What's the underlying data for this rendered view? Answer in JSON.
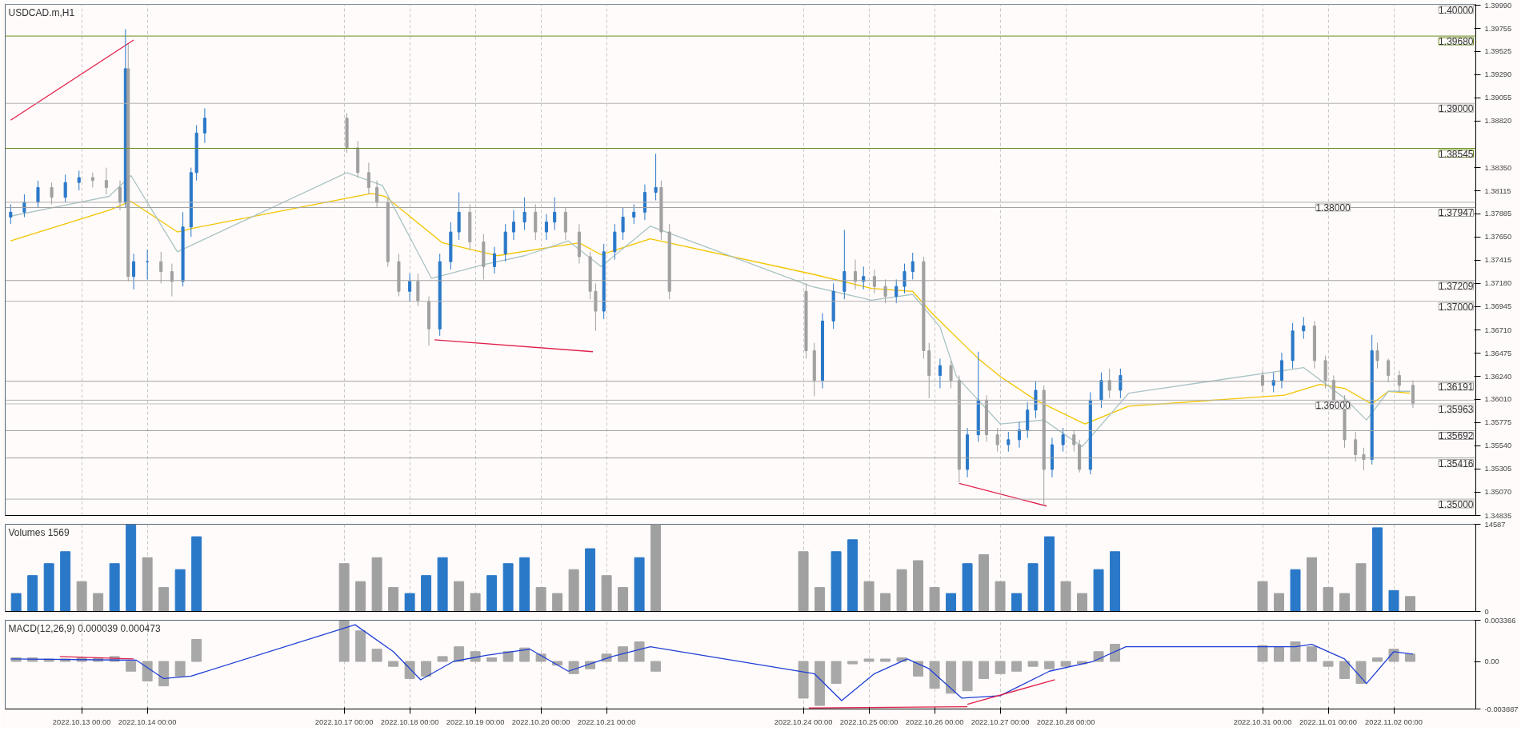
{
  "chart_data": [
    {
      "type": "candlestick",
      "title": "USDCAD.m,H1",
      "grid": "x",
      "tick_labels": "y",
      "xlim": [
        "2022-10-11T20:00",
        "2022-11-03T06:00"
      ],
      "ylim": [
        1.34835,
        1.4
      ],
      "xticks": [
        {
          "value": "2022-10-13T00:00",
          "label": null
        },
        {
          "value": "2022-10-14T00:00",
          "label": null
        },
        {
          "value": "2022-10-17T00:00",
          "label": null
        },
        {
          "value": "2022-10-18T00:00",
          "label": null
        },
        {
          "value": "2022-10-19T00:00",
          "label": null
        },
        {
          "value": "2022-10-20T00:00",
          "label": null
        },
        {
          "value": "2022-10-21T00:00",
          "label": null
        },
        {
          "value": "2022-10-24T00:00",
          "label": null
        },
        {
          "value": "2022-10-25T00:00",
          "label": null
        },
        {
          "value": "2022-10-26T00:00",
          "label": null
        },
        {
          "value": "2022-10-27T00:00",
          "label": null
        },
        {
          "value": "2022-10-28T00:00",
          "label": null
        },
        {
          "value": "2022-10-31T00:00",
          "label": null
        },
        {
          "value": "2022-11-01T00:00",
          "label": null
        },
        {
          "value": "2022-11-02T00:00",
          "label": null
        }
      ],
      "yticks": [
        {
          "value": 1.3999,
          "label": "1.39990"
        },
        1.39755,
        1.39525,
        {
          "value": 1.3929,
          "label": "1.39290"
        },
        1.39055,
        {
          "value": 1.3882,
          "label": "1.38820"
        },
        {
          "value": 1.3835,
          "label": "1.38350"
        },
        1.38115,
        1.37885,
        {
          "value": 1.3765,
          "label": "1.37650"
        },
        1.37415,
        {
          "value": 1.3718,
          "label": "1.37180"
        },
        1.36945,
        {
          "value": 1.3671,
          "label": "1.36710"
        },
        1.36475,
        {
          "value": 1.3624,
          "label": "1.36240"
        },
        {
          "value": 1.3601,
          "label": "1.36010"
        },
        1.35775,
        {
          "value": 1.3554,
          "label": "1.35540"
        },
        1.35305,
        {
          "value": 1.3507,
          "label": "1.35070"
        },
        1.34835
      ],
      "x": [
        "2022-10-11T22:00",
        "2022-10-12T03:00",
        "2022-10-12T08:00",
        "2022-10-12T13:00",
        "2022-10-12T18:00",
        "2022-10-12T23:00",
        "2022-10-13T04:00",
        "2022-10-13T09:00",
        "2022-10-13T14:00",
        "2022-10-13T16:00",
        "2022-10-13T17:00",
        "2022-10-13T19:00",
        "2022-10-14T00:00",
        "2022-10-14T05:00",
        "2022-10-14T09:00",
        "2022-10-14T13:00",
        "2022-10-14T16:00",
        "2022-10-14T18:00",
        "2022-10-14T21:00",
        "2022-10-17T01:00",
        "2022-10-17T05:00",
        "2022-10-17T09:00",
        "2022-10-17T12:00",
        "2022-10-17T16:00",
        "2022-10-17T20:00",
        "2022-10-18T00:00",
        "2022-10-18T03:00",
        "2022-10-18T07:00",
        "2022-10-18T11:00",
        "2022-10-18T15:00",
        "2022-10-18T18:00",
        "2022-10-18T22:00",
        "2022-10-19T03:00",
        "2022-10-19T07:00",
        "2022-10-19T11:00",
        "2022-10-19T14:00",
        "2022-10-19T18:00",
        "2022-10-19T22:00",
        "2022-10-20T02:00",
        "2022-10-20T05:00",
        "2022-10-20T09:00",
        "2022-10-20T14:00",
        "2022-10-20T18:00",
        "2022-10-20T20:00",
        "2022-10-20T23:00",
        "2022-10-21T03:00",
        "2022-10-21T06:00",
        "2022-10-21T10:00",
        "2022-10-21T14:00",
        "2022-10-21T18:00",
        "2022-10-21T20:00",
        "2022-10-21T23:00",
        "2022-10-24T01:00",
        "2022-10-24T04:00",
        "2022-10-24T07:00",
        "2022-10-24T11:00",
        "2022-10-24T15:00",
        "2022-10-24T19:00",
        "2022-10-24T22:00",
        "2022-10-25T02:00",
        "2022-10-25T06:00",
        "2022-10-25T10:00",
        "2022-10-25T13:00",
        "2022-10-25T16:00",
        "2022-10-25T20:00",
        "2022-10-25T22:00",
        "2022-10-26T02:00",
        "2022-10-26T06:00",
        "2022-10-26T09:00",
        "2022-10-26T12:00",
        "2022-10-26T16:00",
        "2022-10-26T19:00",
        "2022-10-26T23:00",
        "2022-10-27T03:00",
        "2022-10-27T07:00",
        "2022-10-27T10:00",
        "2022-10-27T13:00",
        "2022-10-27T16:00",
        "2022-10-27T19:00",
        "2022-10-27T23:00",
        "2022-10-28T03:00",
        "2022-10-28T05:00",
        "2022-10-28T09:00",
        "2022-10-28T13:00",
        "2022-10-28T16:00",
        "2022-10-28T20:00",
        "2022-10-31T00:00",
        "2022-10-31T04:00",
        "2022-10-31T07:00",
        "2022-10-31T11:00",
        "2022-10-31T15:00",
        "2022-10-31T19:00",
        "2022-10-31T23:00",
        "2022-11-01T02:00",
        "2022-11-01T06:00",
        "2022-11-01T10:00",
        "2022-11-01T13:00",
        "2022-11-01T16:00",
        "2022-11-01T18:00",
        "2022-11-01T22:00",
        "2022-11-02T02:00",
        "2022-11-02T07:00"
      ],
      "ohlc": [
        [
          1.3785,
          1.3798,
          1.3778,
          1.379
        ],
        [
          1.379,
          1.3808,
          1.3785,
          1.38
        ],
        [
          1.38,
          1.3822,
          1.3795,
          1.3815
        ],
        [
          1.3815,
          1.382,
          1.3798,
          1.3805
        ],
        [
          1.3805,
          1.3828,
          1.38,
          1.382
        ],
        [
          1.382,
          1.3832,
          1.3812,
          1.3825
        ],
        [
          1.3825,
          1.383,
          1.3815,
          1.3822
        ],
        [
          1.3822,
          1.3835,
          1.3808,
          1.3815
        ],
        [
          1.3815,
          1.3822,
          1.3792,
          1.38
        ],
        [
          1.38,
          1.3975,
          1.3795,
          1.3935
        ],
        [
          1.3935,
          1.396,
          1.372,
          1.3725
        ],
        [
          1.3725,
          1.3748,
          1.3712,
          1.374
        ],
        [
          1.374,
          1.3752,
          1.3722,
          1.374
        ],
        [
          1.374,
          1.375,
          1.3718,
          1.373
        ],
        [
          1.373,
          1.3738,
          1.3705,
          1.372
        ],
        [
          1.372,
          1.379,
          1.3715,
          1.3775
        ],
        [
          1.3775,
          1.3835,
          1.3765,
          1.383
        ],
        [
          1.383,
          1.3878,
          1.3822,
          1.387
        ],
        [
          1.387,
          1.3895,
          1.386,
          1.3885
        ],
        [
          1.3885,
          1.389,
          1.385,
          1.3855
        ],
        [
          1.3855,
          1.3862,
          1.3825,
          1.383
        ],
        [
          1.383,
          1.384,
          1.3808,
          1.3815
        ],
        [
          1.3815,
          1.3822,
          1.3795,
          1.38
        ],
        [
          1.38,
          1.3805,
          1.3735,
          1.374
        ],
        [
          1.374,
          1.3748,
          1.3705,
          1.371
        ],
        [
          1.371,
          1.3728,
          1.37,
          1.372
        ],
        [
          1.372,
          1.3728,
          1.3695,
          1.37
        ],
        [
          1.37,
          1.3705,
          1.3655,
          1.3672
        ],
        [
          1.3672,
          1.3748,
          1.3665,
          1.374
        ],
        [
          1.374,
          1.378,
          1.3732,
          1.377
        ],
        [
          1.377,
          1.381,
          1.3762,
          1.379
        ],
        [
          1.379,
          1.3798,
          1.3752,
          1.376
        ],
        [
          1.376,
          1.3768,
          1.3722,
          1.3735
        ],
        [
          1.3735,
          1.3755,
          1.3728,
          1.3748
        ],
        [
          1.3748,
          1.3778,
          1.374,
          1.377
        ],
        [
          1.377,
          1.3792,
          1.3762,
          1.378
        ],
        [
          1.378,
          1.3805,
          1.3772,
          1.379
        ],
        [
          1.379,
          1.3798,
          1.3762,
          1.377
        ],
        [
          1.377,
          1.3788,
          1.3762,
          1.378
        ],
        [
          1.378,
          1.3805,
          1.3772,
          1.379
        ],
        [
          1.379,
          1.3795,
          1.3762,
          1.377
        ],
        [
          1.377,
          1.3778,
          1.3738,
          1.3745
        ],
        [
          1.3745,
          1.375,
          1.3702,
          1.371
        ],
        [
          1.371,
          1.3718,
          1.367,
          1.369
        ],
        [
          1.369,
          1.3758,
          1.3682,
          1.375
        ],
        [
          1.375,
          1.3778,
          1.3742,
          1.377
        ],
        [
          1.377,
          1.3795,
          1.3762,
          1.3785
        ],
        [
          1.3785,
          1.3798,
          1.3778,
          1.379
        ],
        [
          1.379,
          1.3818,
          1.3782,
          1.381
        ],
        [
          1.381,
          1.3849,
          1.3802,
          1.3815
        ],
        [
          1.3815,
          1.3822,
          1.3762,
          1.377
        ],
        [
          1.377,
          1.3778,
          1.3702,
          1.371
        ],
        [
          1.371,
          1.3718,
          1.3642,
          1.365
        ],
        [
          1.365,
          1.3658,
          1.3604,
          1.362
        ],
        [
          1.362,
          1.3688,
          1.3612,
          1.368
        ],
        [
          1.368,
          1.3718,
          1.3672,
          1.371
        ],
        [
          1.371,
          1.3772,
          1.3702,
          1.373
        ],
        [
          1.373,
          1.3742,
          1.3712,
          1.372
        ],
        [
          1.372,
          1.3735,
          1.3712,
          1.3725
        ],
        [
          1.3725,
          1.3732,
          1.3708,
          1.3715
        ],
        [
          1.3715,
          1.3722,
          1.3698,
          1.3705
        ],
        [
          1.3705,
          1.3722,
          1.3698,
          1.3715
        ],
        [
          1.3715,
          1.3738,
          1.3708,
          1.373
        ],
        [
          1.373,
          1.3749,
          1.3722,
          1.374
        ],
        [
          1.374,
          1.3745,
          1.3642,
          1.365
        ],
        [
          1.365,
          1.3658,
          1.3602,
          1.3625
        ],
        [
          1.3625,
          1.3642,
          1.3612,
          1.3635
        ],
        [
          1.3635,
          1.364,
          1.3612,
          1.362
        ],
        [
          1.362,
          1.3625,
          1.3517,
          1.353
        ],
        [
          1.353,
          1.3572,
          1.3522,
          1.3565
        ],
        [
          1.3565,
          1.3649,
          1.3558,
          1.36
        ],
        [
          1.36,
          1.3605,
          1.3558,
          1.3565
        ],
        [
          1.3565,
          1.3572,
          1.3548,
          1.3555
        ],
        [
          1.3555,
          1.3568,
          1.3548,
          1.356
        ],
        [
          1.356,
          1.3578,
          1.3552,
          1.357
        ],
        [
          1.357,
          1.3598,
          1.3562,
          1.359
        ],
        [
          1.359,
          1.3619,
          1.3582,
          1.361
        ],
        [
          1.361,
          1.3615,
          1.3493,
          1.353
        ],
        [
          1.353,
          1.3562,
          1.3522,
          1.3555
        ],
        [
          1.3555,
          1.3572,
          1.3548,
          1.3565
        ],
        [
          1.3565,
          1.357,
          1.3548,
          1.3555
        ],
        [
          1.3555,
          1.356,
          1.3527,
          1.353
        ],
        [
          1.353,
          1.3608,
          1.3525,
          1.36
        ],
        [
          1.36,
          1.3628,
          1.3592,
          1.362
        ],
        [
          1.362,
          1.3632,
          1.3602,
          1.361
        ],
        [
          1.361,
          1.3632,
          1.3602,
          1.3625
        ],
        [
          1.3625,
          1.363,
          1.3608,
          1.3615
        ],
        [
          1.3615,
          1.3628,
          1.3608,
          1.362
        ],
        [
          1.362,
          1.3648,
          1.3612,
          1.364
        ],
        [
          1.364,
          1.3678,
          1.3632,
          1.367
        ],
        [
          1.367,
          1.3684,
          1.3662,
          1.3675
        ],
        [
          1.3675,
          1.368,
          1.3632,
          1.364
        ],
        [
          1.364,
          1.3645,
          1.3612,
          1.362
        ],
        [
          1.362,
          1.3625,
          1.3592,
          1.36
        ],
        [
          1.36,
          1.3605,
          1.3552,
          1.356
        ],
        [
          1.356,
          1.3568,
          1.3538,
          1.3545
        ],
        [
          1.3545,
          1.3552,
          1.3529,
          1.354
        ],
        [
          1.354,
          1.3666,
          1.3535,
          1.365
        ],
        [
          1.365,
          1.3658,
          1.3632,
          1.364
        ],
        [
          1.364,
          1.3642,
          1.3618,
          1.3625
        ],
        [
          1.3625,
          1.363,
          1.3608,
          1.3615
        ],
        [
          1.3615,
          1.362,
          1.3592,
          1.35963
        ]
      ],
      "series": [
        {
          "type": "line",
          "color": "#f2c500",
          "x": [
            "2022-10-11T22:00",
            "2022-10-13T10:00",
            "2022-10-13T18:00",
            "2022-10-14T11:00",
            "2022-10-14T17:00",
            "2022-10-17T10:00",
            "2022-10-17T15:00",
            "2022-10-18T12:00",
            "2022-10-19T08:00",
            "2022-10-20T02:00",
            "2022-10-20T14:00",
            "2022-10-20T22:00",
            "2022-10-21T16:00",
            "2022-10-24T04:00",
            "2022-10-25T01:00",
            "2022-10-25T16:00",
            "2022-10-25T23:00",
            "2022-10-26T16:00",
            "2022-10-27T00:00",
            "2022-10-27T13:00",
            "2022-10-28T07:00",
            "2022-10-28T23:00",
            "2022-10-31T08:00",
            "2022-10-31T21:00",
            "2022-11-01T06:00",
            "2022-11-01T16:00",
            "2022-11-01T22:00",
            "2022-11-02T06:00"
          ],
          "values": [
            1.3761,
            1.3792,
            1.3801,
            1.377,
            1.3774,
            1.3809,
            1.3806,
            1.3759,
            1.3746,
            1.3754,
            1.3759,
            1.3747,
            1.3763,
            1.3727,
            1.3713,
            1.371,
            1.3688,
            1.3642,
            1.3624,
            1.36,
            1.3576,
            1.3594,
            1.3605,
            1.3616,
            1.3612,
            1.3596,
            1.3609,
            1.3607
          ]
        },
        {
          "type": "line",
          "color": "#a9c4c4",
          "x": [
            "2022-10-11T22:00",
            "2022-10-13T10:00",
            "2022-10-13T18:00",
            "2022-10-14T11:00",
            "2022-10-17T01:00",
            "2022-10-17T14:00",
            "2022-10-18T08:00",
            "2022-10-19T03:00",
            "2022-10-19T18:00",
            "2022-10-20T10:00",
            "2022-10-20T22:00",
            "2022-10-21T16:00",
            "2022-10-24T03:00",
            "2022-10-25T01:00",
            "2022-10-25T16:00",
            "2022-10-26T02:00",
            "2022-10-26T08:00",
            "2022-10-27T00:00",
            "2022-10-27T16:00",
            "2022-10-28T06:00",
            "2022-10-28T23:00",
            "2022-10-31T15:00",
            "2022-11-01T06:00",
            "2022-11-01T14:00",
            "2022-11-01T22:00",
            "2022-11-02T06:00"
          ],
          "values": [
            1.3786,
            1.3806,
            1.3827,
            1.375,
            1.383,
            1.3817,
            1.3723,
            1.3737,
            1.3746,
            1.3761,
            1.3735,
            1.3776,
            1.3715,
            1.3701,
            1.3707,
            1.3674,
            1.3624,
            1.3576,
            1.358,
            1.3553,
            1.3607,
            1.3633,
            1.3602,
            1.358,
            1.3609,
            1.3609
          ]
        },
        {
          "type": "line",
          "color": "#e0204a",
          "x": [
            "2022-10-11T22:00",
            "2022-10-13T19:00"
          ],
          "values": [
            1.3883,
            1.3964
          ]
        },
        {
          "type": "line",
          "color": "#e0204a",
          "x": [
            "2022-10-18T09:00",
            "2022-10-20T19:00"
          ],
          "values": [
            1.3661,
            1.3649
          ]
        },
        {
          "type": "line",
          "color": "#e0204a",
          "x": [
            "2022-10-26T09:00",
            "2022-10-27T17:00"
          ],
          "values": [
            1.3516,
            1.3493
          ]
        }
      ],
      "colors": [
        "#2a78c8",
        "#2a78c8",
        "#2a78c8",
        "#a0a0a0",
        "#2a78c8",
        "#2a78c8",
        "#a0a0a0",
        "#a0a0a0",
        "#a0a0a0",
        "#2a78c8",
        "#a0a0a0",
        "#2a78c8",
        "#2a78c8",
        "#a0a0a0",
        "#a0a0a0",
        "#2a78c8",
        "#2a78c8",
        "#2a78c8",
        "#2a78c8",
        "#a0a0a0",
        "#a0a0a0",
        "#a0a0a0",
        "#a0a0a0",
        "#a0a0a0",
        "#a0a0a0",
        "#2a78c8",
        "#a0a0a0",
        "#a0a0a0",
        "#2a78c8",
        "#2a78c8",
        "#2a78c8",
        "#a0a0a0",
        "#a0a0a0",
        "#2a78c8",
        "#2a78c8",
        "#2a78c8",
        "#2a78c8",
        "#a0a0a0",
        "#2a78c8",
        "#2a78c8",
        "#a0a0a0",
        "#a0a0a0",
        "#a0a0a0",
        "#a0a0a0",
        "#2a78c8",
        "#2a78c8",
        "#2a78c8",
        "#2a78c8",
        "#2a78c8",
        "#2a78c8",
        "#a0a0a0",
        "#a0a0a0",
        "#a0a0a0",
        "#a0a0a0",
        "#2a78c8",
        "#2a78c8",
        "#2a78c8",
        "#a0a0a0",
        "#2a78c8",
        "#a0a0a0",
        "#a0a0a0",
        "#2a78c8",
        "#2a78c8",
        "#2a78c8",
        "#a0a0a0",
        "#a0a0a0",
        "#2a78c8",
        "#a0a0a0",
        "#a0a0a0",
        "#2a78c8",
        "#2a78c8",
        "#a0a0a0",
        "#a0a0a0",
        "#2a78c8",
        "#2a78c8",
        "#2a78c8",
        "#2a78c8",
        "#a0a0a0",
        "#2a78c8",
        "#2a78c8",
        "#a0a0a0",
        "#a0a0a0",
        "#2a78c8",
        "#2a78c8",
        "#a0a0a0",
        "#2a78c8",
        "#a0a0a0",
        "#2a78c8",
        "#2a78c8",
        "#2a78c8",
        "#2a78c8",
        "#a0a0a0",
        "#a0a0a0",
        "#a0a0a0",
        "#a0a0a0",
        "#a0a0a0",
        "#a0a0a0",
        "#2a78c8",
        "#a0a0a0",
        "#a0a0a0",
        "#a0a0a0",
        "#a0a0a0"
      ],
      "ref_lines": [
        {
          "axis": "y",
          "value": 1.3968,
          "label": "1.39680",
          "color": "#6b8e23"
        },
        {
          "axis": "y",
          "value": 1.38545,
          "label": "1.38545",
          "color": "#6b8e23"
        },
        {
          "axis": "y",
          "value": 1.37947,
          "label": "1.37947",
          "color": "#a0a0a0"
        },
        {
          "axis": "y",
          "value": 1.37209,
          "label": "1.37209",
          "color": "#a0a0a0"
        },
        {
          "axis": "y",
          "value": 1.36191,
          "label": "1.36191",
          "color": "#a0a0a0"
        },
        {
          "axis": "y",
          "value": 1.35692,
          "label": "1.35692",
          "color": "#a0a0a0"
        },
        {
          "axis": "y",
          "value": 1.35416,
          "label": "1.35416",
          "color": "#a0a0a0"
        },
        {
          "axis": "y",
          "value": 1.35963,
          "label": "1.35963",
          "color": "#c0c0c0"
        },
        {
          "axis": "y",
          "value": 1.4,
          "label": "1.40000",
          "color": "#b0b0b0"
        },
        {
          "axis": "y",
          "value": 1.39,
          "label": "1.39000",
          "color": "#b0b0b0"
        },
        {
          "axis": "y",
          "value": 1.38,
          "label": "1.38000",
          "color": "#b0b0b0"
        },
        {
          "axis": "y",
          "value": 1.37,
          "label": "1.37000",
          "color": "#b0b0b0"
        },
        {
          "axis": "y",
          "value": 1.36,
          "label": "1.36000",
          "color": "#b0b0b0"
        },
        {
          "axis": "y",
          "value": 1.35,
          "label": "1.35000",
          "color": "#b0b0b0"
        }
      ]
    },
    {
      "type": "bar",
      "title": "Volumes 1569",
      "grid": "x",
      "tick_labels": "y",
      "xlim": [
        "2022-10-11T20:00",
        "2022-11-03T06:00"
      ],
      "ylim": [
        0,
        14587
      ],
      "yticks": [
        0,
        14587
      ],
      "xticks": [
        {
          "value": "2022-10-13T00:00",
          "label": null
        },
        {
          "value": "2022-10-14T00:00",
          "label": null
        },
        {
          "value": "2022-10-17T00:00",
          "label": null
        },
        {
          "value": "2022-10-18T00:00",
          "label": null
        },
        {
          "value": "2022-10-19T00:00",
          "label": null
        },
        {
          "value": "2022-10-20T00:00",
          "label": null
        },
        {
          "value": "2022-10-21T00:00",
          "label": null
        },
        {
          "value": "2022-10-24T00:00",
          "label": null
        },
        {
          "value": "2022-10-25T00:00",
          "label": null
        },
        {
          "value": "2022-10-26T00:00",
          "label": null
        },
        {
          "value": "2022-10-27T00:00",
          "label": null
        },
        {
          "value": "2022-10-28T00:00",
          "label": null
        },
        {
          "value": "2022-10-31T00:00",
          "label": null
        },
        {
          "value": "2022-11-01T00:00",
          "label": null
        },
        {
          "value": "2022-11-02T00:00",
          "label": null
        }
      ],
      "x": [
        "2022-10-12T00:00",
        "2022-10-12T06:00",
        "2022-10-12T12:00",
        "2022-10-12T18:00",
        "2022-10-13T00:00",
        "2022-10-13T06:00",
        "2022-10-13T12:00",
        "2022-10-13T18:00",
        "2022-10-14T00:00",
        "2022-10-14T06:00",
        "2022-10-14T12:00",
        "2022-10-14T18:00",
        "2022-10-17T00:00",
        "2022-10-17T06:00",
        "2022-10-17T12:00",
        "2022-10-17T18:00",
        "2022-10-18T00:00",
        "2022-10-18T06:00",
        "2022-10-18T12:00",
        "2022-10-18T18:00",
        "2022-10-19T00:00",
        "2022-10-19T06:00",
        "2022-10-19T12:00",
        "2022-10-19T18:00",
        "2022-10-20T00:00",
        "2022-10-20T06:00",
        "2022-10-20T12:00",
        "2022-10-20T18:00",
        "2022-10-21T00:00",
        "2022-10-21T06:00",
        "2022-10-21T12:00",
        "2022-10-21T18:00",
        "2022-10-24T00:00",
        "2022-10-24T06:00",
        "2022-10-24T12:00",
        "2022-10-24T18:00",
        "2022-10-25T00:00",
        "2022-10-25T06:00",
        "2022-10-25T12:00",
        "2022-10-25T18:00",
        "2022-10-26T00:00",
        "2022-10-26T06:00",
        "2022-10-26T12:00",
        "2022-10-26T18:00",
        "2022-10-27T00:00",
        "2022-10-27T06:00",
        "2022-10-27T12:00",
        "2022-10-27T18:00",
        "2022-10-28T00:00",
        "2022-10-28T06:00",
        "2022-10-28T12:00",
        "2022-10-28T18:00",
        "2022-10-31T00:00",
        "2022-10-31T06:00",
        "2022-10-31T12:00",
        "2022-10-31T18:00",
        "2022-11-01T00:00",
        "2022-11-01T06:00",
        "2022-11-01T12:00",
        "2022-11-01T18:00",
        "2022-11-02T00:00",
        "2022-11-02T06:00"
      ],
      "values": [
        3000,
        6000,
        8000,
        10000,
        5000,
        3000,
        8000,
        14500,
        9000,
        4000,
        7000,
        12500,
        8000,
        5000,
        9000,
        4000,
        3000,
        6000,
        9000,
        5000,
        3000,
        6000,
        8000,
        9000,
        4000,
        3000,
        7000,
        10500,
        6000,
        4000,
        9000,
        14587,
        10000,
        4000,
        10000,
        12000,
        5000,
        3000,
        7000,
        8500,
        4000,
        3000,
        8000,
        9500,
        5000,
        3000,
        8000,
        12500,
        5000,
        3000,
        7000,
        10000,
        5000,
        3000,
        7000,
        9000,
        4000,
        3000,
        8000,
        14000,
        3500,
        2500
      ],
      "colors": [
        "#2a78c8",
        "#2a78c8",
        "#2a78c8",
        "#2a78c8",
        "#a0a0a0",
        "#a0a0a0",
        "#2a78c8",
        "#2a78c8",
        "#a0a0a0",
        "#a0a0a0",
        "#2a78c8",
        "#2a78c8",
        "#a0a0a0",
        "#a0a0a0",
        "#a0a0a0",
        "#a0a0a0",
        "#2a78c8",
        "#2a78c8",
        "#2a78c8",
        "#a0a0a0",
        "#a0a0a0",
        "#2a78c8",
        "#2a78c8",
        "#2a78c8",
        "#a0a0a0",
        "#a0a0a0",
        "#a0a0a0",
        "#2a78c8",
        "#a0a0a0",
        "#a0a0a0",
        "#2a78c8",
        "#a0a0a0",
        "#a0a0a0",
        "#a0a0a0",
        "#2a78c8",
        "#2a78c8",
        "#a0a0a0",
        "#a0a0a0",
        "#a0a0a0",
        "#a0a0a0",
        "#a0a0a0",
        "#2a78c8",
        "#2a78c8",
        "#a0a0a0",
        "#a0a0a0",
        "#2a78c8",
        "#2a78c8",
        "#2a78c8",
        "#a0a0a0",
        "#a0a0a0",
        "#2a78c8",
        "#2a78c8",
        "#a0a0a0",
        "#a0a0a0",
        "#2a78c8",
        "#a0a0a0",
        "#a0a0a0",
        "#a0a0a0",
        "#a0a0a0",
        "#2a78c8",
        "#2a78c8",
        "#a0a0a0"
      ]
    },
    {
      "type": "bar",
      "title": "MACD(12,26,9) 0.000039 0.000473",
      "grid": "x",
      "xlim": [
        "2022-10-11T20:00",
        "2022-11-03T06:00"
      ],
      "ylim": [
        -0.003887,
        0.003366
      ],
      "yticks": [
        0.003366,
        {
          "value": 0,
          "label": "0.00"
        },
        -0.003887
      ],
      "color": "#a8a8a8",
      "xticks": [
        {
          "value": "2022-10-13T00:00",
          "label": "2022.10.13 00:00"
        },
        {
          "value": "2022-10-14T00:00",
          "label": "2022.10.14 00:00"
        },
        {
          "value": "2022-10-17T00:00",
          "label": "2022.10.17 00:00"
        },
        {
          "value": "2022-10-18T00:00",
          "label": "2022.10.18 00:00"
        },
        {
          "value": "2022-10-19T00:00",
          "label": "2022.10.19 00:00"
        },
        {
          "value": "2022-10-20T00:00",
          "label": "2022.10.20 00:00"
        },
        {
          "value": "2022-10-21T00:00",
          "label": "2022.10.21 00:00"
        },
        {
          "value": "2022-10-24T00:00",
          "label": "2022.10.24 00:00"
        },
        {
          "value": "2022-10-25T00:00",
          "label": "2022.10.25 00:00"
        },
        {
          "value": "2022-10-26T00:00",
          "label": "2022.10.26 00:00"
        },
        {
          "value": "2022-10-27T00:00",
          "label": "2022.10.27 00:00"
        },
        {
          "value": "2022-10-28T00:00",
          "label": "2022.10.28 00:00"
        },
        {
          "value": "2022-10-31T00:00",
          "label": "2022.10.31 00:00"
        },
        {
          "value": "2022-11-01T00:00",
          "label": "2022.11.01 00:00"
        },
        {
          "value": "2022-11-02T00:00",
          "label": "2022.11.02 00:00"
        }
      ],
      "x": [
        "2022-10-12T00:00",
        "2022-10-12T06:00",
        "2022-10-12T12:00",
        "2022-10-12T18:00",
        "2022-10-13T00:00",
        "2022-10-13T06:00",
        "2022-10-13T12:00",
        "2022-10-13T18:00",
        "2022-10-14T00:00",
        "2022-10-14T06:00",
        "2022-10-14T12:00",
        "2022-10-14T18:00",
        "2022-10-17T00:00",
        "2022-10-17T06:00",
        "2022-10-17T12:00",
        "2022-10-17T18:00",
        "2022-10-18T00:00",
        "2022-10-18T06:00",
        "2022-10-18T12:00",
        "2022-10-18T18:00",
        "2022-10-19T00:00",
        "2022-10-19T06:00",
        "2022-10-19T12:00",
        "2022-10-19T18:00",
        "2022-10-20T00:00",
        "2022-10-20T06:00",
        "2022-10-20T12:00",
        "2022-10-20T18:00",
        "2022-10-21T00:00",
        "2022-10-21T06:00",
        "2022-10-21T12:00",
        "2022-10-21T18:00",
        "2022-10-24T00:00",
        "2022-10-24T06:00",
        "2022-10-24T12:00",
        "2022-10-24T18:00",
        "2022-10-25T00:00",
        "2022-10-25T06:00",
        "2022-10-25T12:00",
        "2022-10-25T18:00",
        "2022-10-26T00:00",
        "2022-10-26T06:00",
        "2022-10-26T12:00",
        "2022-10-26T18:00",
        "2022-10-27T00:00",
        "2022-10-27T06:00",
        "2022-10-27T12:00",
        "2022-10-27T18:00",
        "2022-10-28T00:00",
        "2022-10-28T06:00",
        "2022-10-28T12:00",
        "2022-10-28T18:00",
        "2022-10-31T00:00",
        "2022-10-31T06:00",
        "2022-10-31T12:00",
        "2022-10-31T18:00",
        "2022-11-01T00:00",
        "2022-11-01T06:00",
        "2022-11-01T12:00",
        "2022-11-01T18:00",
        "2022-11-02T00:00",
        "2022-11-02T06:00"
      ],
      "values": [
        0.0003,
        0.0003,
        0.0002,
        0.0002,
        0.0003,
        0.0003,
        0.0004,
        -0.0008,
        -0.0016,
        -0.002,
        -0.0012,
        0.0018,
        0.0033,
        0.0025,
        0.001,
        -0.0004,
        -0.0014,
        -0.0012,
        0.0004,
        0.0012,
        0.0008,
        0.0003,
        0.0008,
        0.0011,
        0.0006,
        -0.0003,
        -0.001,
        -0.0006,
        0.0006,
        0.0012,
        0.0016,
        -0.0008,
        -0.003,
        -0.0036,
        -0.0018,
        -0.0002,
        0.0002,
        0.0002,
        0.0003,
        -0.0012,
        -0.0022,
        -0.0026,
        -0.0024,
        -0.0014,
        -0.001,
        -0.0008,
        -0.0004,
        -0.0006,
        -0.0004,
        -0.0002,
        0.0008,
        0.0014,
        0.0013,
        0.0012,
        0.0016,
        0.0012,
        -0.0004,
        -0.0014,
        -0.0018,
        0.0003,
        0.001,
        0.0006
      ],
      "series": [
        {
          "type": "line",
          "color": "#1f3fd6",
          "x": [
            "2022-10-11T22:00",
            "2022-10-13T20:00",
            "2022-10-14T06:00",
            "2022-10-14T16:00",
            "2022-10-17T04:00",
            "2022-10-17T18:00",
            "2022-10-18T04:00",
            "2022-10-18T16:00",
            "2022-10-19T04:00",
            "2022-10-19T20:00",
            "2022-10-20T10:00",
            "2022-10-21T02:00",
            "2022-10-21T16:00",
            "2022-10-24T04:00",
            "2022-10-24T14:00",
            "2022-10-25T02:00",
            "2022-10-25T14:00",
            "2022-10-25T22:00",
            "2022-10-26T10:00",
            "2022-10-27T00:00",
            "2022-10-27T18:00",
            "2022-10-28T10:00",
            "2022-10-28T22:00",
            "2022-10-31T12:00",
            "2022-10-31T18:00",
            "2022-11-01T06:00",
            "2022-11-01T14:00",
            "2022-11-02T00:00",
            "2022-11-02T07:00"
          ],
          "values": [
            0.0002,
            0.0001,
            -0.0014,
            -0.0012,
            0.003,
            0.0008,
            -0.0015,
            0,
            0.0005,
            0.001,
            -0.0008,
            0.0004,
            0.0012,
            -0.001,
            -0.0032,
            -0.001,
            0.0002,
            -0.0006,
            -0.003,
            -0.0028,
            -0.0008,
            0,
            0.0012,
            0.0012,
            0.0014,
            0.0002,
            -0.0018,
            0.0008,
            0.0006
          ]
        },
        {
          "type": "line",
          "color": "#e0204a",
          "x": [
            "2022-10-12T16:00",
            "2022-10-13T19:00"
          ],
          "values": [
            0.0004,
            0.0002
          ]
        },
        {
          "type": "line",
          "color": "#e0204a",
          "x": [
            "2022-10-24T02:00",
            "2022-10-26T12:00"
          ],
          "values": [
            -0.0038,
            -0.0037
          ]
        },
        {
          "type": "line",
          "color": "#e0204a",
          "x": [
            "2022-10-26T12:00",
            "2022-10-27T20:00"
          ],
          "values": [
            -0.0035,
            -0.0015
          ]
        }
      ]
    }
  ]
}
